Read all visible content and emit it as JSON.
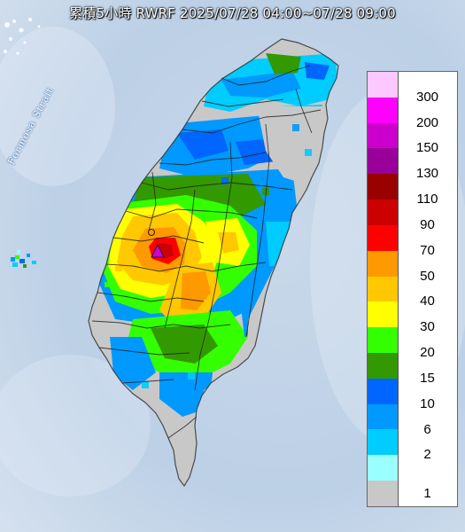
{
  "title": "累積5小時 RWRF 2025/07/28 04:00~07/28 09:00",
  "sea_label": "Formosa Strait",
  "legend": {
    "labels": [
      "300",
      "200",
      "150",
      "130",
      "110",
      "90",
      "70",
      "50",
      "40",
      "30",
      "20",
      "15",
      "10",
      "6",
      "2",
      "1"
    ],
    "colors": [
      "#fdc7ff",
      "#ff00ff",
      "#cc00cc",
      "#990099",
      "#990000",
      "#cc0000",
      "#ff0000",
      "#ff9900",
      "#ffc800",
      "#ffff00",
      "#33ff00",
      "#339900",
      "#0066ff",
      "#0099ff",
      "#00ccff",
      "#99ffff",
      "#c8c8c8"
    ]
  },
  "marker": {
    "name": "station-marker",
    "color": "#d000d0"
  }
}
